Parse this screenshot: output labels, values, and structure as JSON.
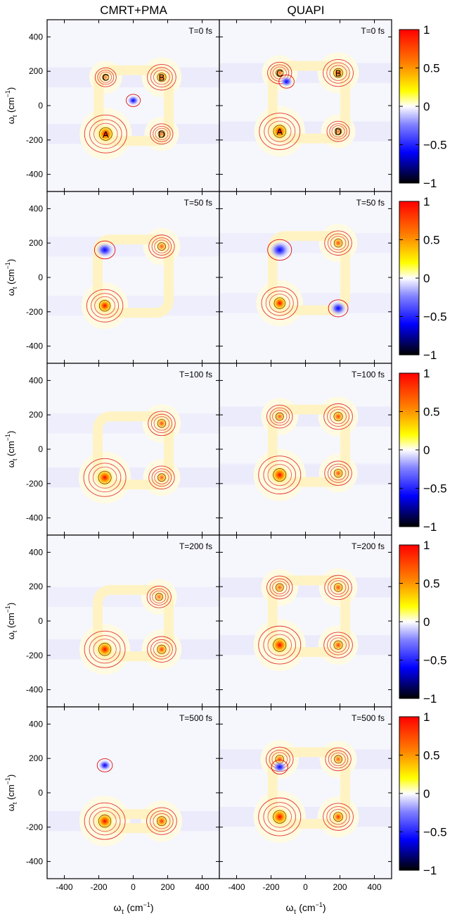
{
  "figure": {
    "columns": [
      "CMRT+PMA",
      "QUAPI"
    ],
    "xlabel": "ω",
    "xlabel_sub": "τ",
    "xlabel_unit": " (cm",
    "ylabel": "ω",
    "ylabel_sub": "t",
    "ylabel_unit": " (cm",
    "unit_exp": "−1",
    "unit_close": ")"
  },
  "colorbar": {
    "ticks": [
      1,
      0.5,
      0,
      -0.5,
      -1
    ],
    "tick_labels": [
      "1",
      "0.5",
      "0",
      "−0.5",
      "−1"
    ],
    "colors": [
      "#ff0000",
      "#ff8000",
      "#ffff00",
      "#ffffff",
      "#8080ff",
      "#0000ff",
      "#000000"
    ]
  },
  "peak_labels": [
    "A",
    "B",
    "C",
    "D"
  ],
  "colors": {
    "contour": "#dd1111",
    "inner_contour": "#7a1a00"
  },
  "chart_data": [
    {
      "type": "heatmap",
      "column": "CMRT+PMA",
      "title": "T=0 fs",
      "xlim": [
        -500,
        500
      ],
      "ylim": [
        -500,
        500
      ],
      "xticks": [
        -400,
        -200,
        0,
        200,
        400
      ],
      "yticks": [
        -400,
        -200,
        0,
        200,
        400
      ],
      "peaks": [
        {
          "label": "A",
          "x": -160,
          "y": -165,
          "value": 0.9
        },
        {
          "label": "B",
          "x": 165,
          "y": 165,
          "value": 0.45
        },
        {
          "label": "C",
          "x": -160,
          "y": 165,
          "value": 0.2
        },
        {
          "label": "D",
          "x": 165,
          "y": -165,
          "value": 0.25
        },
        {
          "x": 0,
          "y": 30,
          "value": -0.15
        }
      ]
    },
    {
      "type": "heatmap",
      "column": "QUAPI",
      "title": "T=0 fs",
      "xlim": [
        -500,
        500
      ],
      "ylim": [
        -500,
        500
      ],
      "xticks": [
        -400,
        -200,
        0,
        200,
        400
      ],
      "yticks": [
        -400,
        -200,
        0,
        200,
        400
      ],
      "peaks": [
        {
          "label": "A",
          "x": -150,
          "y": -150,
          "value": 0.85
        },
        {
          "label": "B",
          "x": 190,
          "y": 190,
          "value": 0.5
        },
        {
          "label": "C",
          "x": -150,
          "y": 190,
          "value": 0.3
        },
        {
          "label": "D",
          "x": 190,
          "y": -150,
          "value": 0.25
        },
        {
          "x": -110,
          "y": 140,
          "value": -0.2
        }
      ]
    },
    {
      "type": "heatmap",
      "column": "CMRT+PMA",
      "title": "T=50 fs",
      "xlim": [
        -500,
        500
      ],
      "ylim": [
        -500,
        500
      ],
      "xticks": [
        -400,
        -200,
        0,
        200,
        400
      ],
      "yticks": [
        -400,
        -200,
        0,
        200,
        400
      ],
      "peaks": [
        {
          "x": -165,
          "y": -165,
          "value": 0.7
        },
        {
          "x": 165,
          "y": 180,
          "value": 0.35
        },
        {
          "x": -165,
          "y": 160,
          "value": -0.45
        }
      ]
    },
    {
      "type": "heatmap",
      "column": "QUAPI",
      "title": "T=50 fs",
      "xlim": [
        -500,
        500
      ],
      "ylim": [
        -500,
        500
      ],
      "xticks": [
        -400,
        -200,
        0,
        200,
        400
      ],
      "yticks": [
        -400,
        -200,
        0,
        200,
        400
      ],
      "peaks": [
        {
          "x": -150,
          "y": -150,
          "value": 0.7
        },
        {
          "x": 190,
          "y": 200,
          "value": 0.4
        },
        {
          "x": -150,
          "y": 160,
          "value": -0.6
        },
        {
          "x": 190,
          "y": -180,
          "value": -0.4
        }
      ]
    },
    {
      "type": "heatmap",
      "column": "CMRT+PMA",
      "title": "T=100 fs",
      "xlim": [
        -500,
        500
      ],
      "ylim": [
        -500,
        500
      ],
      "xticks": [
        -400,
        -200,
        0,
        200,
        400
      ],
      "yticks": [
        -400,
        -200,
        0,
        200,
        400
      ],
      "peaks": [
        {
          "x": -165,
          "y": -165,
          "value": 0.9
        },
        {
          "x": 165,
          "y": 150,
          "value": 0.4
        },
        {
          "x": 165,
          "y": -165,
          "value": 0.35
        }
      ]
    },
    {
      "type": "heatmap",
      "column": "QUAPI",
      "title": "T=100 fs",
      "xlim": [
        -500,
        500
      ],
      "ylim": [
        -500,
        500
      ],
      "xticks": [
        -400,
        -200,
        0,
        200,
        400
      ],
      "yticks": [
        -400,
        -200,
        0,
        200,
        400
      ],
      "peaks": [
        {
          "x": -150,
          "y": -150,
          "value": 0.9
        },
        {
          "x": 190,
          "y": 190,
          "value": 0.45
        },
        {
          "x": 190,
          "y": -140,
          "value": 0.4
        },
        {
          "x": -150,
          "y": 190,
          "value": 0.35
        }
      ]
    },
    {
      "type": "heatmap",
      "column": "CMRT+PMA",
      "title": "T=200 fs",
      "xlim": [
        -500,
        500
      ],
      "ylim": [
        -500,
        500
      ],
      "xticks": [
        -400,
        -200,
        0,
        200,
        400
      ],
      "yticks": [
        -400,
        -200,
        0,
        200,
        400
      ],
      "peaks": [
        {
          "x": -165,
          "y": -165,
          "value": 0.85
        },
        {
          "x": 165,
          "y": -165,
          "value": 0.45
        },
        {
          "x": 150,
          "y": 140,
          "value": 0.3
        }
      ]
    },
    {
      "type": "heatmap",
      "column": "QUAPI",
      "title": "T=200 fs",
      "xlim": [
        -500,
        500
      ],
      "ylim": [
        -500,
        500
      ],
      "xticks": [
        -400,
        -200,
        0,
        200,
        400
      ],
      "yticks": [
        -400,
        -200,
        0,
        200,
        400
      ],
      "peaks": [
        {
          "x": -150,
          "y": -140,
          "value": 0.9
        },
        {
          "x": 190,
          "y": -140,
          "value": 0.45
        },
        {
          "x": 190,
          "y": 195,
          "value": 0.4
        },
        {
          "x": -150,
          "y": 195,
          "value": 0.35
        }
      ]
    },
    {
      "type": "heatmap",
      "column": "CMRT+PMA",
      "title": "T=500 fs",
      "xlim": [
        -500,
        500
      ],
      "ylim": [
        -500,
        500
      ],
      "xticks": [
        -400,
        -200,
        0,
        200,
        400
      ],
      "yticks": [
        -400,
        -200,
        0,
        200,
        400
      ],
      "peaks": [
        {
          "x": -165,
          "y": -165,
          "value": 0.85
        },
        {
          "x": 165,
          "y": -165,
          "value": 0.5
        },
        {
          "x": -165,
          "y": 160,
          "value": -0.2
        }
      ]
    },
    {
      "type": "heatmap",
      "column": "QUAPI",
      "title": "T=500 fs",
      "xlim": [
        -500,
        500
      ],
      "ylim": [
        -500,
        500
      ],
      "xticks": [
        -400,
        -200,
        0,
        200,
        400
      ],
      "yticks": [
        -400,
        -200,
        0,
        200,
        400
      ],
      "peaks": [
        {
          "x": -150,
          "y": -140,
          "value": 0.9
        },
        {
          "x": 190,
          "y": -140,
          "value": 0.5
        },
        {
          "x": -150,
          "y": 195,
          "value": 0.4
        },
        {
          "x": 190,
          "y": 195,
          "value": 0.35
        },
        {
          "x": -150,
          "y": 150,
          "value": -0.25
        }
      ]
    }
  ]
}
